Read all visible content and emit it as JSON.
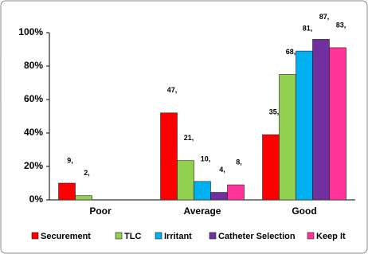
{
  "chart_data": {
    "type": "bar",
    "categories": [
      "Poor",
      "Average",
      "Good"
    ],
    "series": [
      {
        "name": "Securement",
        "color": "#ff0000",
        "values": [
          10,
          52,
          39
        ],
        "count_labels": [
          "9,",
          "47,",
          "35,"
        ]
      },
      {
        "name": "TLC",
        "color": "#92d050",
        "values": [
          2.5,
          23.5,
          75
        ],
        "count_labels": [
          "2,",
          "21,",
          "68,"
        ]
      },
      {
        "name": "Irritant",
        "color": "#00b0f0",
        "values": [
          0,
          11,
          89
        ],
        "count_labels": [
          null,
          "10,",
          "81,"
        ]
      },
      {
        "name": "Catheter Selection",
        "color": "#7030a0",
        "values": [
          0,
          4.5,
          96
        ],
        "count_labels": [
          null,
          "4,",
          "87,"
        ]
      },
      {
        "name": "Keep It",
        "color": "#ff3399",
        "values": [
          0,
          9,
          91
        ],
        "count_labels": [
          null,
          "8,",
          "83,"
        ]
      }
    ],
    "ylim": [
      0,
      100
    ],
    "yticks": [
      {
        "value": 0,
        "label": "0%"
      },
      {
        "value": 20,
        "label": "20%"
      },
      {
        "value": 40,
        "label": "40%"
      },
      {
        "value": 60,
        "label": "60%"
      },
      {
        "value": 80,
        "label": "80%"
      },
      {
        "value": 100,
        "label": "100%"
      }
    ],
    "grid": false,
    "legend": "bottom"
  }
}
